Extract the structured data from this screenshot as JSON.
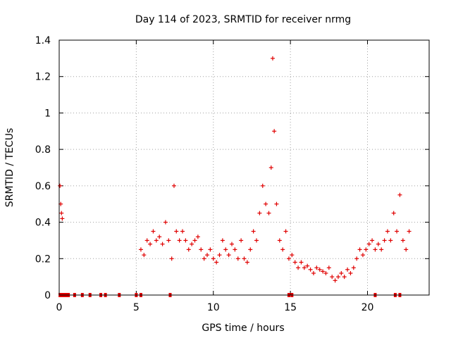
{
  "chart_data": {
    "type": "scatter",
    "title": "Day 114 of 2023, SRMTID for receiver nrmg",
    "xlabel": "GPS time / hours",
    "ylabel": "SRMTID / TECUs",
    "xlim": [
      0,
      24
    ],
    "ylim": [
      0,
      1.4
    ],
    "xticks": [
      0,
      5,
      10,
      15,
      20
    ],
    "xtick_labels": [
      "0",
      "5",
      "10",
      "15",
      "20"
    ],
    "yticks": [
      0,
      0.2,
      0.4,
      0.6,
      0.8,
      1.0,
      1.2,
      1.4
    ],
    "ytick_labels": [
      "0",
      "0.2",
      "0.4",
      "0.6",
      "0.8",
      "1",
      "1.2",
      "1.4"
    ],
    "grid": true,
    "marker": "plus",
    "color": "#e00000",
    "series": [
      {
        "name": "SRMTID",
        "x": [
          0.05,
          0.1,
          0.15,
          0.2,
          5.3,
          5.5,
          5.7,
          5.9,
          6.1,
          6.3,
          6.5,
          6.7,
          6.9,
          7.1,
          7.3,
          7.45,
          7.6,
          7.8,
          8.0,
          8.2,
          8.4,
          8.6,
          8.8,
          9.0,
          9.2,
          9.4,
          9.6,
          9.8,
          10.0,
          10.2,
          10.4,
          10.6,
          10.8,
          11.0,
          11.2,
          11.4,
          11.6,
          11.8,
          12.0,
          12.2,
          12.4,
          12.6,
          12.8,
          13.0,
          13.2,
          13.4,
          13.6,
          13.75,
          13.85,
          13.95,
          14.1,
          14.3,
          14.5,
          14.7,
          14.9,
          15.1,
          15.3,
          15.5,
          15.7,
          15.9,
          16.1,
          16.3,
          16.5,
          16.7,
          16.9,
          17.1,
          17.3,
          17.5,
          17.7,
          17.9,
          18.1,
          18.3,
          18.5,
          18.7,
          18.9,
          19.1,
          19.3,
          19.5,
          19.7,
          19.9,
          20.1,
          20.3,
          20.5,
          20.7,
          20.9,
          21.1,
          21.3,
          21.5,
          21.7,
          21.9,
          22.1,
          22.3,
          22.5,
          22.7
        ],
        "y": [
          0.6,
          0.5,
          0.45,
          0.42,
          0.25,
          0.22,
          0.3,
          0.28,
          0.35,
          0.3,
          0.32,
          0.28,
          0.4,
          0.3,
          0.2,
          0.6,
          0.35,
          0.3,
          0.35,
          0.3,
          0.25,
          0.28,
          0.3,
          0.32,
          0.25,
          0.2,
          0.22,
          0.25,
          0.2,
          0.18,
          0.22,
          0.3,
          0.25,
          0.22,
          0.28,
          0.25,
          0.2,
          0.3,
          0.2,
          0.18,
          0.25,
          0.35,
          0.3,
          0.45,
          0.6,
          0.5,
          0.45,
          0.7,
          1.3,
          0.9,
          0.5,
          0.3,
          0.25,
          0.35,
          0.2,
          0.22,
          0.18,
          0.15,
          0.18,
          0.15,
          0.16,
          0.14,
          0.12,
          0.15,
          0.14,
          0.13,
          0.12,
          0.15,
          0.1,
          0.08,
          0.1,
          0.12,
          0.1,
          0.14,
          0.12,
          0.15,
          0.2,
          0.25,
          0.22,
          0.25,
          0.28,
          0.3,
          0.25,
          0.28,
          0.25,
          0.3,
          0.35,
          0.3,
          0.45,
          0.35,
          0.55,
          0.3,
          0.25,
          0.35
        ],
        "zero_x": [
          0.05,
          0.15,
          0.3,
          0.45,
          0.6,
          1.0,
          1.5,
          2.0,
          2.7,
          3.0,
          3.9,
          5.0,
          5.3,
          7.2,
          14.9,
          15.1,
          20.5,
          21.8,
          22.1
        ]
      }
    ]
  }
}
